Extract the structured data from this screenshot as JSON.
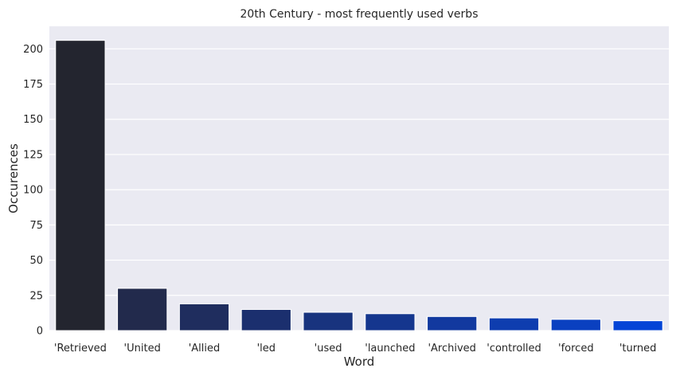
{
  "chart_data": {
    "type": "bar",
    "title": "20th Century - most frequently used verbs",
    "xlabel": "Word",
    "ylabel": "Occurences",
    "categories": [
      "'Retrieved",
      "'United",
      "'Allied",
      "'led",
      "'used",
      "'launched",
      "'Archived",
      "'controlled",
      "'forced",
      "'turned"
    ],
    "values": [
      206,
      30,
      19,
      15,
      13,
      12,
      10,
      9,
      8,
      7
    ],
    "ylim": [
      0,
      216
    ],
    "yticks": [
      0,
      25,
      50,
      75,
      100,
      125,
      150,
      175,
      200
    ],
    "ytick_labels": [
      "0",
      "25",
      "50",
      "75",
      "100",
      "125",
      "150",
      "175",
      "200"
    ],
    "grid": true,
    "colors": [
      "#23252f",
      "#222a4c",
      "#1f2d5e",
      "#1b2f6e",
      "#18337e",
      "#15368e",
      "#12399f",
      "#0e3daf",
      "#0a40c0",
      "#0444d6"
    ],
    "background": "#eaeaf2",
    "grid_color": "#ffffff"
  }
}
